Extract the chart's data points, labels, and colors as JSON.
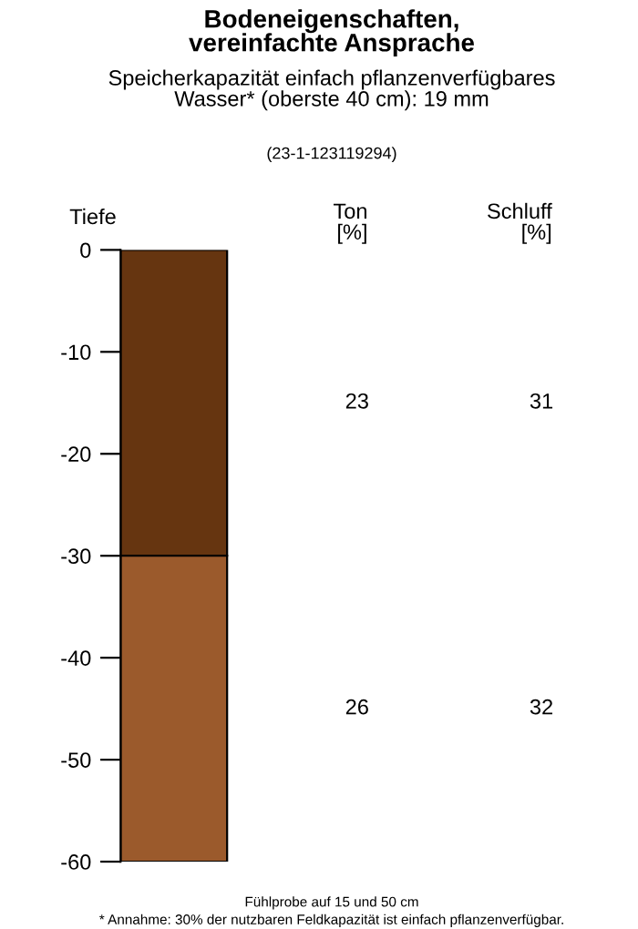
{
  "chart_data": {
    "type": "bar",
    "title": "Bodeneigenschaften,\nvereinfachte Ansprache",
    "subtitle": "Speicherkapazität einfach pflanzenverfügbares\nWasser* (oberste 40 cm): 19 mm",
    "ylabel": "Tiefe",
    "categories": [
      null
    ],
    "stacked": true,
    "series": [
      {
        "color": "#663510",
        "values": [
          -30
        ]
      },
      {
        "color": "#9b5a2c",
        "values": [
          -30
        ]
      }
    ],
    "ylim": [
      -60,
      0
    ],
    "yticks": [
      0,
      -10,
      -20,
      -30,
      -40,
      -50,
      -60
    ],
    "grid": false,
    "tick_labels": "y",
    "annotations": [
      "(23-1-123119294)",
      "Ton\n[%]",
      "Schluff\n[%]",
      "23",
      "31",
      "26",
      "32",
      "Fühlprobe auf 15 und 50 cm",
      "* Annahme: 30% der nutzbaren Feldkapazität ist einfach pflanzenverfügbar."
    ]
  }
}
